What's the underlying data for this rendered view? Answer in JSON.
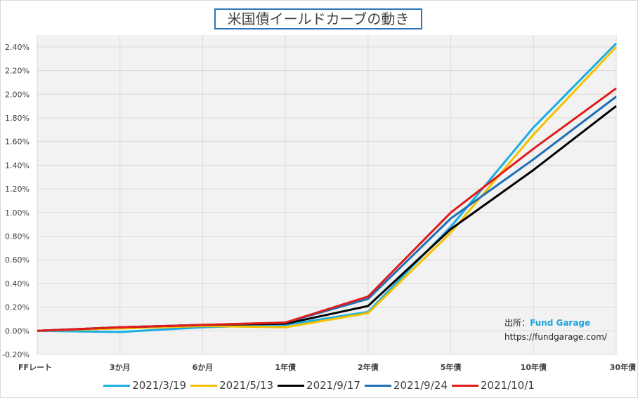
{
  "chart_data": {
    "type": "line",
    "title": "米国債イールドカーブの動き",
    "categories": [
      "FFレート",
      "3か月",
      "6か月",
      "1年債",
      "2年債",
      "5年債",
      "10年債",
      "30年債"
    ],
    "ylim": [
      -0.2,
      2.5
    ],
    "yticks": [
      -0.2,
      0.0,
      0.2,
      0.4,
      0.6,
      0.8,
      1.0,
      1.2,
      1.4,
      1.6,
      1.8,
      2.0,
      2.2,
      2.4
    ],
    "ytick_labels": [
      "-0.20%",
      "0.00%",
      "0.20%",
      "0.40%",
      "0.60%",
      "0.80%",
      "1.00%",
      "1.20%",
      "1.40%",
      "1.60%",
      "1.80%",
      "2.00%",
      "2.20%",
      "2.40%"
    ],
    "grid": true,
    "legend_position": "bottom",
    "series": [
      {
        "name": "2021/3/19",
        "color": "#1aaee0",
        "values": [
          0.0,
          -0.01,
          0.03,
          0.05,
          0.16,
          0.88,
          1.72,
          2.43
        ]
      },
      {
        "name": "2021/5/13",
        "color": "#f5c000",
        "values": [
          0.0,
          0.02,
          0.04,
          0.03,
          0.15,
          0.83,
          1.66,
          2.4
        ]
      },
      {
        "name": "2021/9/17",
        "color": "#000000",
        "values": [
          0.0,
          0.03,
          0.05,
          0.06,
          0.21,
          0.86,
          1.36,
          1.9
        ]
      },
      {
        "name": "2021/9/24",
        "color": "#1f6fb5",
        "values": [
          0.0,
          0.03,
          0.05,
          0.07,
          0.27,
          0.95,
          1.45,
          1.98
        ]
      },
      {
        "name": "2021/10/1",
        "color": "#e31a1a",
        "values": [
          0.0,
          0.03,
          0.05,
          0.07,
          0.29,
          1.0,
          1.54,
          2.05
        ]
      }
    ]
  },
  "annotation": {
    "source_label": "出所：",
    "source_name": "Fund Garage",
    "url": "https://fundgarage.com/"
  }
}
